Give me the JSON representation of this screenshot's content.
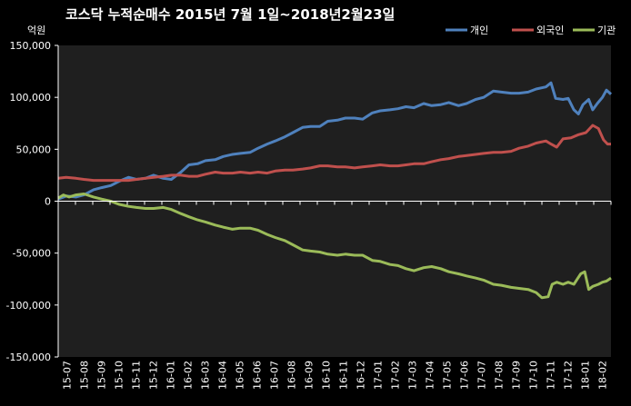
{
  "chart_data": {
    "type": "line",
    "title": "코스닥 누적순매수 2015년 7월 1일~2018년2월23일",
    "unit_label": "억원",
    "ylim": [
      -150000,
      150000
    ],
    "yticks": [
      150000,
      100000,
      50000,
      0,
      -50000,
      -100000,
      -150000
    ],
    "ytick_labels": [
      "150,000",
      "100,000",
      "50,000",
      "0",
      "-50,000",
      "-100,000",
      "-150,000"
    ],
    "xlim": [
      "2015-07-01",
      "2018-02-23"
    ],
    "xtick_labels": [
      "15-07",
      "15-08",
      "15-09",
      "15-10",
      "15-11",
      "15-12",
      "16-01",
      "16-02",
      "16-03",
      "16-04",
      "16-05",
      "16-06",
      "16-07",
      "16-08",
      "16-09",
      "16-10",
      "16-11",
      "16-12",
      "17-01",
      "17-02",
      "17-03",
      "17-04",
      "17-05",
      "17-06",
      "17-07",
      "17-08",
      "17-09",
      "17-10",
      "17-11",
      "17-12",
      "18-01",
      "18-02"
    ],
    "grid": false,
    "legend_position": "top-right",
    "colors": {
      "background": "#1f1f1f",
      "axis": "#ffffff"
    },
    "series": [
      {
        "name": "개인",
        "color": "#4f81bd",
        "points": [
          [
            "2015-07-01",
            2000
          ],
          [
            "2015-07-15",
            5000
          ],
          [
            "2015-08-01",
            4000
          ],
          [
            "2015-08-15",
            6000
          ],
          [
            "2015-09-01",
            11000
          ],
          [
            "2015-09-15",
            13000
          ],
          [
            "2015-10-01",
            15000
          ],
          [
            "2015-10-15",
            19000
          ],
          [
            "2015-11-01",
            23000
          ],
          [
            "2015-11-15",
            21000
          ],
          [
            "2015-12-01",
            22000
          ],
          [
            "2015-12-15",
            25000
          ],
          [
            "2016-01-01",
            22000
          ],
          [
            "2016-01-15",
            21000
          ],
          [
            "2016-02-01",
            28000
          ],
          [
            "2016-02-15",
            35000
          ],
          [
            "2016-03-01",
            36000
          ],
          [
            "2016-03-15",
            39000
          ],
          [
            "2016-04-01",
            40000
          ],
          [
            "2016-04-15",
            43000
          ],
          [
            "2016-05-01",
            45000
          ],
          [
            "2016-05-15",
            46000
          ],
          [
            "2016-06-01",
            47000
          ],
          [
            "2016-06-15",
            51000
          ],
          [
            "2016-07-01",
            55000
          ],
          [
            "2016-07-15",
            58000
          ],
          [
            "2016-08-01",
            62000
          ],
          [
            "2016-08-15",
            66000
          ],
          [
            "2016-09-01",
            71000
          ],
          [
            "2016-09-15",
            72000
          ],
          [
            "2016-10-01",
            72000
          ],
          [
            "2016-10-15",
            77000
          ],
          [
            "2016-11-01",
            78000
          ],
          [
            "2016-11-15",
            80000
          ],
          [
            "2016-12-01",
            80000
          ],
          [
            "2016-12-15",
            79000
          ],
          [
            "2017-01-01",
            85000
          ],
          [
            "2017-01-15",
            87000
          ],
          [
            "2017-02-01",
            88000
          ],
          [
            "2017-02-15",
            89000
          ],
          [
            "2017-03-01",
            91000
          ],
          [
            "2017-03-15",
            90000
          ],
          [
            "2017-04-01",
            94000
          ],
          [
            "2017-04-15",
            92000
          ],
          [
            "2017-05-01",
            93000
          ],
          [
            "2017-05-15",
            95000
          ],
          [
            "2017-06-01",
            92000
          ],
          [
            "2017-06-15",
            94000
          ],
          [
            "2017-07-01",
            98000
          ],
          [
            "2017-07-15",
            100000
          ],
          [
            "2017-08-01",
            106000
          ],
          [
            "2017-08-15",
            105000
          ],
          [
            "2017-09-01",
            104000
          ],
          [
            "2017-09-15",
            104000
          ],
          [
            "2017-10-01",
            105000
          ],
          [
            "2017-10-15",
            108000
          ],
          [
            "2017-11-01",
            110000
          ],
          [
            "2017-11-10",
            114000
          ],
          [
            "2017-11-18",
            99000
          ],
          [
            "2017-12-01",
            98000
          ],
          [
            "2017-12-10",
            99000
          ],
          [
            "2017-12-20",
            88000
          ],
          [
            "2017-12-28",
            84000
          ],
          [
            "2018-01-05",
            93000
          ],
          [
            "2018-01-15",
            98000
          ],
          [
            "2018-01-22",
            88000
          ],
          [
            "2018-01-30",
            94000
          ],
          [
            "2018-02-08",
            100000
          ],
          [
            "2018-02-15",
            107000
          ],
          [
            "2018-02-23",
            103000
          ]
        ]
      },
      {
        "name": "외국인",
        "color": "#c0504d",
        "points": [
          [
            "2015-07-01",
            22000
          ],
          [
            "2015-07-15",
            23000
          ],
          [
            "2015-08-01",
            22000
          ],
          [
            "2015-08-15",
            21000
          ],
          [
            "2015-09-01",
            20000
          ],
          [
            "2015-09-15",
            20000
          ],
          [
            "2015-10-01",
            20000
          ],
          [
            "2015-10-15",
            20000
          ],
          [
            "2015-11-01",
            20000
          ],
          [
            "2015-11-15",
            21000
          ],
          [
            "2015-12-01",
            22000
          ],
          [
            "2015-12-15",
            23000
          ],
          [
            "2016-01-01",
            24000
          ],
          [
            "2016-01-15",
            25000
          ],
          [
            "2016-02-01",
            25000
          ],
          [
            "2016-02-15",
            24000
          ],
          [
            "2016-03-01",
            24000
          ],
          [
            "2016-03-15",
            26000
          ],
          [
            "2016-04-01",
            28000
          ],
          [
            "2016-04-15",
            27000
          ],
          [
            "2016-05-01",
            27000
          ],
          [
            "2016-05-15",
            28000
          ],
          [
            "2016-06-01",
            27000
          ],
          [
            "2016-06-15",
            28000
          ],
          [
            "2016-07-01",
            27000
          ],
          [
            "2016-07-15",
            29000
          ],
          [
            "2016-08-01",
            30000
          ],
          [
            "2016-08-15",
            30000
          ],
          [
            "2016-09-01",
            31000
          ],
          [
            "2016-09-15",
            32000
          ],
          [
            "2016-10-01",
            34000
          ],
          [
            "2016-10-15",
            34000
          ],
          [
            "2016-11-01",
            33000
          ],
          [
            "2016-11-15",
            33000
          ],
          [
            "2016-12-01",
            32000
          ],
          [
            "2016-12-15",
            33000
          ],
          [
            "2017-01-01",
            34000
          ],
          [
            "2017-01-15",
            35000
          ],
          [
            "2017-02-01",
            34000
          ],
          [
            "2017-02-15",
            34000
          ],
          [
            "2017-03-01",
            35000
          ],
          [
            "2017-03-15",
            36000
          ],
          [
            "2017-04-01",
            36000
          ],
          [
            "2017-04-15",
            38000
          ],
          [
            "2017-05-01",
            40000
          ],
          [
            "2017-05-15",
            41000
          ],
          [
            "2017-06-01",
            43000
          ],
          [
            "2017-06-15",
            44000
          ],
          [
            "2017-07-01",
            45000
          ],
          [
            "2017-07-15",
            46000
          ],
          [
            "2017-08-01",
            47000
          ],
          [
            "2017-08-15",
            47000
          ],
          [
            "2017-09-01",
            48000
          ],
          [
            "2017-09-15",
            51000
          ],
          [
            "2017-10-01",
            53000
          ],
          [
            "2017-10-15",
            56000
          ],
          [
            "2017-11-01",
            58000
          ],
          [
            "2017-11-10",
            55000
          ],
          [
            "2017-11-20",
            52000
          ],
          [
            "2017-12-01",
            60000
          ],
          [
            "2017-12-15",
            61000
          ],
          [
            "2017-12-28",
            64000
          ],
          [
            "2018-01-10",
            66000
          ],
          [
            "2018-01-22",
            73000
          ],
          [
            "2018-02-01",
            70000
          ],
          [
            "2018-02-10",
            59000
          ],
          [
            "2018-02-17",
            55000
          ],
          [
            "2018-02-23",
            55000
          ]
        ]
      },
      {
        "name": "기관",
        "color": "#9bbb59",
        "points": [
          [
            "2015-07-01",
            3000
          ],
          [
            "2015-07-10",
            6000
          ],
          [
            "2015-07-20",
            4000
          ],
          [
            "2015-08-01",
            6000
          ],
          [
            "2015-08-15",
            7000
          ],
          [
            "2015-09-01",
            4000
          ],
          [
            "2015-09-15",
            2000
          ],
          [
            "2015-10-01",
            0
          ],
          [
            "2015-10-15",
            -3000
          ],
          [
            "2015-11-01",
            -5000
          ],
          [
            "2015-11-15",
            -6000
          ],
          [
            "2015-12-01",
            -7000
          ],
          [
            "2015-12-15",
            -7000
          ],
          [
            "2016-01-01",
            -6000
          ],
          [
            "2016-01-15",
            -8000
          ],
          [
            "2016-02-01",
            -12000
          ],
          [
            "2016-02-15",
            -15000
          ],
          [
            "2016-03-01",
            -18000
          ],
          [
            "2016-03-15",
            -20000
          ],
          [
            "2016-04-01",
            -23000
          ],
          [
            "2016-04-15",
            -25000
          ],
          [
            "2016-05-01",
            -27000
          ],
          [
            "2016-05-15",
            -26000
          ],
          [
            "2016-06-01",
            -26000
          ],
          [
            "2016-06-15",
            -28000
          ],
          [
            "2016-07-01",
            -32000
          ],
          [
            "2016-07-15",
            -35000
          ],
          [
            "2016-08-01",
            -38000
          ],
          [
            "2016-08-15",
            -42000
          ],
          [
            "2016-09-01",
            -47000
          ],
          [
            "2016-09-15",
            -48000
          ],
          [
            "2016-10-01",
            -49000
          ],
          [
            "2016-10-15",
            -51000
          ],
          [
            "2016-11-01",
            -52000
          ],
          [
            "2016-11-15",
            -51000
          ],
          [
            "2016-12-01",
            -52000
          ],
          [
            "2016-12-15",
            -52000
          ],
          [
            "2017-01-01",
            -57000
          ],
          [
            "2017-01-15",
            -58000
          ],
          [
            "2017-02-01",
            -61000
          ],
          [
            "2017-02-15",
            -62000
          ],
          [
            "2017-03-01",
            -65000
          ],
          [
            "2017-03-15",
            -67000
          ],
          [
            "2017-04-01",
            -64000
          ],
          [
            "2017-04-15",
            -63000
          ],
          [
            "2017-05-01",
            -65000
          ],
          [
            "2017-05-15",
            -68000
          ],
          [
            "2017-06-01",
            -70000
          ],
          [
            "2017-06-15",
            -72000
          ],
          [
            "2017-07-01",
            -74000
          ],
          [
            "2017-07-15",
            -76000
          ],
          [
            "2017-08-01",
            -80000
          ],
          [
            "2017-08-15",
            -81000
          ],
          [
            "2017-09-01",
            -83000
          ],
          [
            "2017-09-15",
            -84000
          ],
          [
            "2017-10-01",
            -85000
          ],
          [
            "2017-10-15",
            -88000
          ],
          [
            "2017-10-25",
            -93000
          ],
          [
            "2017-11-05",
            -92000
          ],
          [
            "2017-11-12",
            -80000
          ],
          [
            "2017-11-20",
            -78000
          ],
          [
            "2017-12-01",
            -80000
          ],
          [
            "2017-12-10",
            -78000
          ],
          [
            "2017-12-20",
            -80000
          ],
          [
            "2018-01-01",
            -70000
          ],
          [
            "2018-01-08",
            -68000
          ],
          [
            "2018-01-15",
            -85000
          ],
          [
            "2018-01-22",
            -82000
          ],
          [
            "2018-02-01",
            -80000
          ],
          [
            "2018-02-08",
            -78000
          ],
          [
            "2018-02-15",
            -77000
          ],
          [
            "2018-02-23",
            -74000
          ]
        ]
      }
    ]
  }
}
